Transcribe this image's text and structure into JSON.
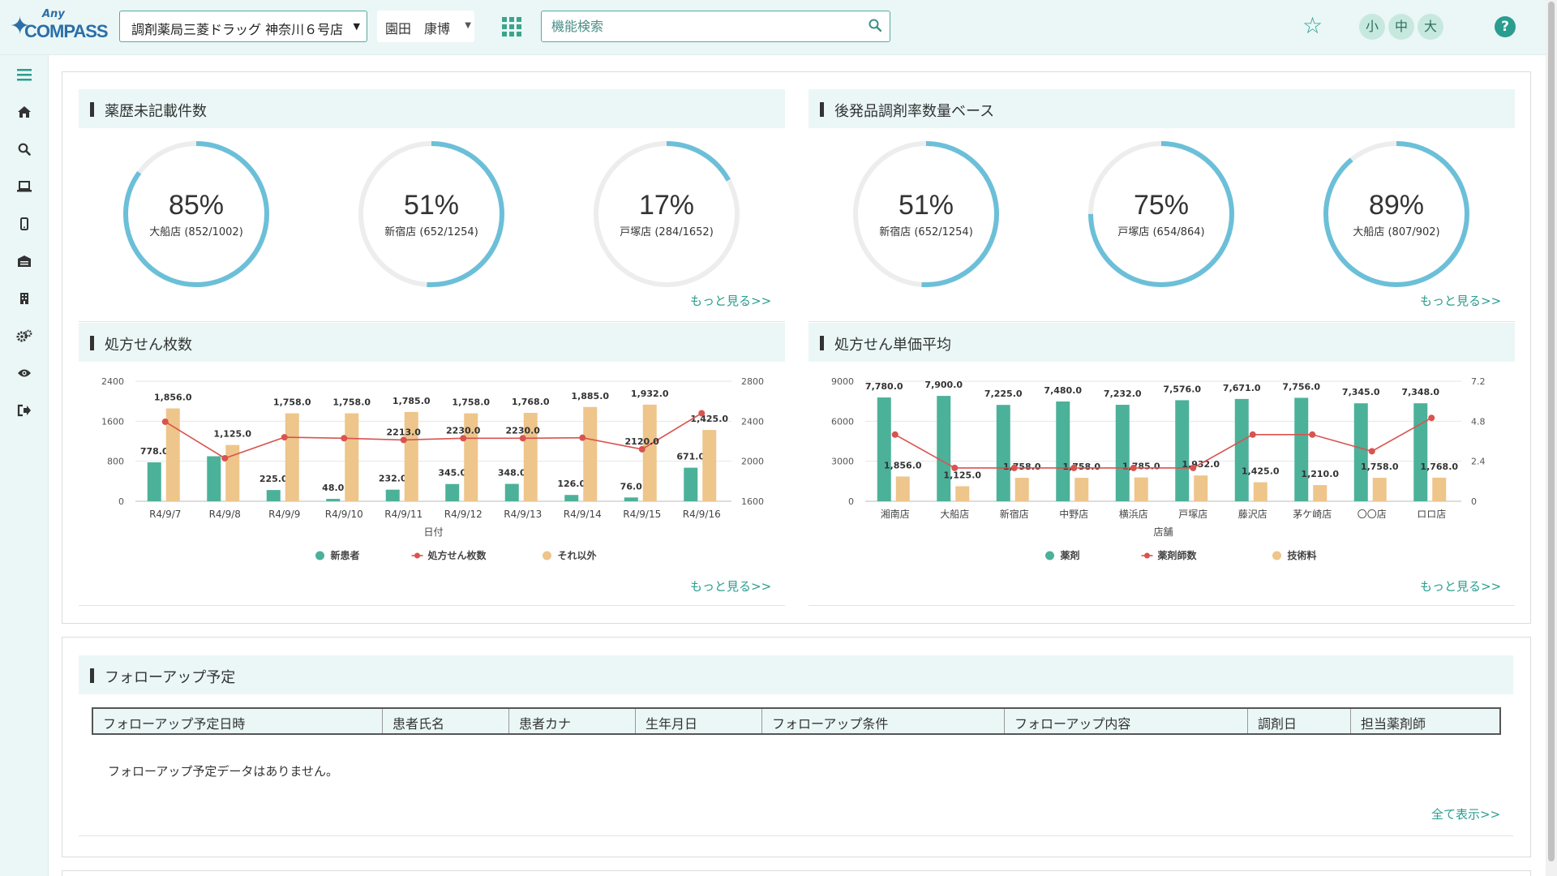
{
  "header": {
    "logo_any": "Any",
    "logo_compass": "COMPASS",
    "store_select": "調剤薬局三菱ドラッグ 神奈川６号店",
    "user_name": "園田　康博",
    "search_placeholder": "機能検索",
    "size_small": "小",
    "size_medium": "中",
    "size_large": "大",
    "help": "?"
  },
  "colors": {
    "accent": "#2a9d8f",
    "donut": "#6cbfd8",
    "green_bar": "#4cb199",
    "tan_bar": "#eec58a",
    "red_line": "#d9534f"
  },
  "sidebar": {
    "icons": [
      "menu-icon",
      "home-icon",
      "search-icon",
      "laptop-icon",
      "mobile-icon",
      "warehouse-icon",
      "building-icon",
      "gears-icon",
      "eye-icon",
      "sign-out-icon"
    ]
  },
  "card1": {
    "title": "薬歴未記載件数",
    "more": "もっと見る>>",
    "donuts": [
      {
        "pct": "85%",
        "label": "大船店 (852/1002)",
        "value": 0.85
      },
      {
        "pct": "51%",
        "label": "新宿店 (652/1254)",
        "value": 0.51
      },
      {
        "pct": "17%",
        "label": "戸塚店 (284/1652)",
        "value": 0.17
      }
    ]
  },
  "card2": {
    "title": "後発品調剤率数量ベース",
    "more": "もっと見る>>",
    "donuts": [
      {
        "pct": "51%",
        "label": "新宿店 (652/1254)",
        "value": 0.51
      },
      {
        "pct": "75%",
        "label": "戸塚店 (654/864)",
        "value": 0.75
      },
      {
        "pct": "89%",
        "label": "大船店 (807/902)",
        "value": 0.89
      }
    ]
  },
  "card3": {
    "title": "処方せん枚数",
    "more": "もっと見る>>"
  },
  "card4": {
    "title": "処方せん単価平均",
    "more": "もっと見る>>"
  },
  "chart_data": [
    {
      "type": "bar",
      "categories": [
        "R4/9/7",
        "R4/9/8",
        "R4/9/9",
        "R4/9/10",
        "R4/9/11",
        "R4/9/12",
        "R4/9/13",
        "R4/9/14",
        "R4/9/15",
        "R4/9/16"
      ],
      "xlabel": "日付",
      "left_ticks": [
        "0",
        "800",
        "1600",
        "2400"
      ],
      "right_ticks": [
        "1600",
        "2000",
        "2400",
        "2800"
      ],
      "ylim_left": [
        0,
        2400
      ],
      "ylim_right": [
        1600,
        2800
      ],
      "series": [
        {
          "name": "新患者",
          "kind": "bar",
          "axis": "left",
          "values": [
            778,
            900,
            225,
            48,
            232,
            345,
            348,
            126,
            76,
            671
          ],
          "labels": [
            "778.0",
            "",
            "225.0",
            "48.0",
            "232.0",
            "345.0",
            "348.0",
            "126.0",
            "76.0",
            "671.0"
          ]
        },
        {
          "name": "処方せん枚数",
          "kind": "line",
          "axis": "right",
          "values": [
            2395,
            2030,
            2240,
            2230,
            2213,
            2230,
            2230,
            2235,
            2120,
            2480
          ],
          "labels": [
            "",
            "",
            "",
            "",
            "2213.0",
            "2230.0",
            "2230.0",
            "",
            "2120.0",
            ""
          ]
        },
        {
          "name": "それ以外",
          "kind": "bar",
          "axis": "left",
          "values": [
            1856,
            1125,
            1758,
            1758,
            1785,
            1758,
            1768,
            1885,
            1932,
            1425
          ],
          "labels": [
            "1,856.0",
            "1,125.0",
            "1,758.0",
            "1,758.0",
            "1,785.0",
            "1,758.0",
            "1,768.0",
            "1,885.0",
            "1,932.0",
            "1,425.0"
          ]
        }
      ],
      "legend": "bottom-center"
    },
    {
      "type": "bar",
      "categories": [
        "湘南店",
        "大船店",
        "新宿店",
        "中野店",
        "横浜店",
        "戸塚店",
        "藤沢店",
        "茅ケ崎店",
        "〇〇店",
        "ロロ店"
      ],
      "xlabel": "店舗",
      "left_ticks": [
        "0",
        "3000",
        "6000",
        "9000"
      ],
      "right_ticks": [
        "0",
        "2.4",
        "4.8",
        "7.2"
      ],
      "ylim_left": [
        0,
        9000
      ],
      "ylim_right": [
        0,
        7.2
      ],
      "series": [
        {
          "name": "薬剤",
          "kind": "bar",
          "axis": "left",
          "values": [
            7780,
            7900,
            7225,
            7480,
            7232,
            7576,
            7671,
            7756,
            7345,
            7348
          ],
          "labels": [
            "7,780.0",
            "7,900.0",
            "7,225.0",
            "7,480.0",
            "7,232.0",
            "7,576.0",
            "7,671.0",
            "7,756.0",
            "7,345.0",
            "7,348.0"
          ]
        },
        {
          "name": "薬剤師数",
          "kind": "line",
          "axis": "right",
          "values": [
            4.0,
            2.0,
            2.0,
            2.0,
            2.0,
            2.0,
            4.0,
            4.0,
            3.0,
            5.0
          ],
          "labels": [
            "",
            "",
            "",
            "",
            "",
            "",
            "",
            "",
            "",
            ""
          ]
        },
        {
          "name": "技術料",
          "kind": "bar",
          "axis": "left",
          "values": [
            1856,
            1125,
            1758,
            1758,
            1785,
            1932,
            1425,
            1210,
            1758,
            1768
          ],
          "labels": [
            "1,856.0",
            "1,125.0",
            "1,758.0",
            "1,758.0",
            "1,785.0",
            "1,932.0",
            "1,425.0",
            "1,210.0",
            "1,758.0",
            "1,768.0"
          ]
        }
      ],
      "legend": "bottom-center"
    }
  ],
  "followup": {
    "title": "フォローアップ予定",
    "columns": [
      "フォローアップ予定日時",
      "患者氏名",
      "患者カナ",
      "生年月日",
      "フォローアップ条件",
      "フォローアップ内容",
      "調剤日",
      "担当薬剤師"
    ],
    "empty": "フォローアップ予定データはありません。",
    "show_all": "全て表示>>"
  }
}
